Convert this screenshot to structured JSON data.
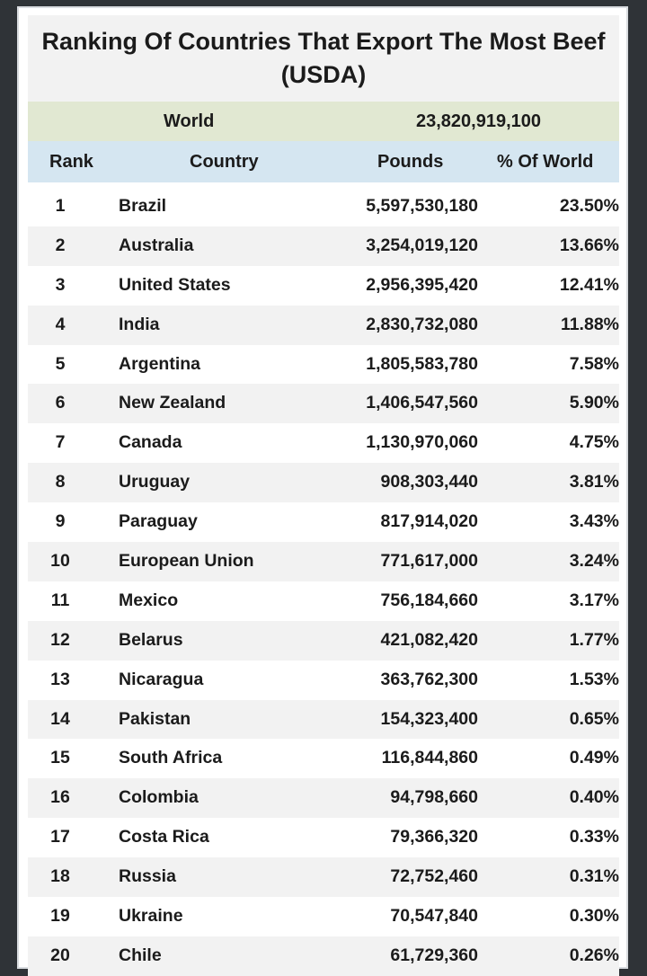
{
  "title": "Ranking Of Countries That Export The Most Beef (USDA)",
  "world": {
    "label": "World",
    "value": "23,820,919,100"
  },
  "headers": {
    "rank": "Rank",
    "country": "Country",
    "pounds": "Pounds",
    "pct": "% Of World"
  },
  "rows": [
    {
      "rank": "1",
      "country": "Brazil",
      "pounds": "5,597,530,180",
      "pct": "23.50%"
    },
    {
      "rank": "2",
      "country": "Australia",
      "pounds": "3,254,019,120",
      "pct": "13.66%"
    },
    {
      "rank": "3",
      "country": "United States",
      "pounds": "2,956,395,420",
      "pct": "12.41%"
    },
    {
      "rank": "4",
      "country": "India",
      "pounds": "2,830,732,080",
      "pct": "11.88%"
    },
    {
      "rank": "5",
      "country": "Argentina",
      "pounds": "1,805,583,780",
      "pct": "7.58%"
    },
    {
      "rank": "6",
      "country": "New Zealand",
      "pounds": "1,406,547,560",
      "pct": "5.90%"
    },
    {
      "rank": "7",
      "country": "Canada",
      "pounds": "1,130,970,060",
      "pct": "4.75%"
    },
    {
      "rank": "8",
      "country": "Uruguay",
      "pounds": "908,303,440",
      "pct": "3.81%"
    },
    {
      "rank": "9",
      "country": "Paraguay",
      "pounds": "817,914,020",
      "pct": "3.43%"
    },
    {
      "rank": "10",
      "country": "European Union",
      "pounds": "771,617,000",
      "pct": "3.24%"
    },
    {
      "rank": "11",
      "country": "Mexico",
      "pounds": "756,184,660",
      "pct": "3.17%"
    },
    {
      "rank": "12",
      "country": "Belarus",
      "pounds": "421,082,420",
      "pct": "1.77%"
    },
    {
      "rank": "13",
      "country": "Nicaragua",
      "pounds": "363,762,300",
      "pct": "1.53%"
    },
    {
      "rank": "14",
      "country": "Pakistan",
      "pounds": "154,323,400",
      "pct": "0.65%"
    },
    {
      "rank": "15",
      "country": "South Africa",
      "pounds": "116,844,860",
      "pct": "0.49%"
    },
    {
      "rank": "16",
      "country": "Colombia",
      "pounds": "94,798,660",
      "pct": "0.40%"
    },
    {
      "rank": "17",
      "country": "Costa Rica",
      "pounds": "79,366,320",
      "pct": "0.33%"
    },
    {
      "rank": "18",
      "country": "Russia",
      "pounds": "72,752,460",
      "pct": "0.31%"
    },
    {
      "rank": "19",
      "country": "Ukraine",
      "pounds": "70,547,840",
      "pct": "0.30%"
    },
    {
      "rank": "20",
      "country": "Chile",
      "pounds": "61,729,360",
      "pct": "0.26%"
    }
  ]
}
